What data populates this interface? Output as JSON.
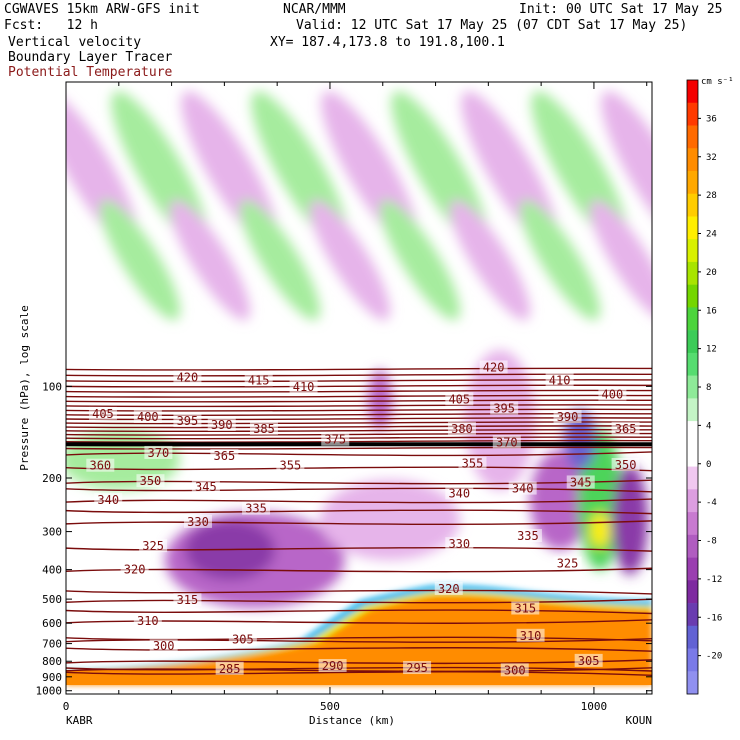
{
  "header": {
    "title_left": "CGWAVES 15km ARW-GFS init",
    "title_center": "NCAR/MMM",
    "init": "Init: 00 UTC Sat 17 May 25",
    "fcst": "Fcst:   12 h",
    "valid": "Valid: 12 UTC Sat 17 May 25 (07 CDT Sat 17 May 25)",
    "field1": "Vertical velocity",
    "field2": "Boundary Layer Tracer",
    "field3": "Potential Temperature",
    "xy": "XY= 187.4,173.8 to 191.8,100.1",
    "field3_color": "#8b1a1a"
  },
  "axes": {
    "ylabel": "Pressure (hPa), log scale",
    "xlabel": "Distance (km)",
    "left_station": "KABR",
    "right_station": "KOUN"
  },
  "colorbar": {
    "unit": "cm s⁻¹",
    "labels": [
      "36",
      "32",
      "28",
      "24",
      "20",
      "16",
      "12",
      "8",
      "4",
      "0",
      "-4",
      "-8",
      "-12",
      "-16",
      "-20"
    ],
    "colors": [
      "#f40000",
      "#ff3a00",
      "#ff6a00",
      "#ff8c00",
      "#ffa800",
      "#ffcc00",
      "#ffee00",
      "#d8f000",
      "#a8e400",
      "#74d600",
      "#4cd43c",
      "#3ccc58",
      "#56dc70",
      "#8eea98",
      "#c4f4c6",
      "#ffffff",
      "#ffffff",
      "#f0c8f0",
      "#dc9ee0",
      "#c87ad0",
      "#b05cc0",
      "#9a3eb0",
      "#7e2aa0",
      "#6a3cb0",
      "#6262d4",
      "#7a7ae8",
      "#9090f0"
    ]
  },
  "chart_data": {
    "type": "heatmap",
    "title": "Vertical velocity, Boundary Layer Tracer, Potential Temperature",
    "xlabel": "Distance (km)",
    "ylabel": "Pressure (hPa), log scale",
    "xlim": [
      0,
      1110
    ],
    "ylim": [
      1025,
      10
    ],
    "y_scale": "log",
    "x_ticks": [
      0,
      500,
      1000
    ],
    "y_ticks": [
      100,
      200,
      300,
      400,
      500,
      600,
      700,
      800,
      900,
      1000
    ],
    "colorbar_ticks": [
      36,
      32,
      28,
      24,
      20,
      16,
      12,
      8,
      4,
      0,
      -4,
      -8,
      -12,
      -16,
      -20
    ],
    "theta_contour_labels": [
      {
        "value": 420,
        "x": 230,
        "p": 95
      },
      {
        "value": 415,
        "x": 365,
        "p": 97
      },
      {
        "value": 410,
        "x": 450,
        "p": 102
      },
      {
        "value": 405,
        "x": 70,
        "p": 125
      },
      {
        "value": 400,
        "x": 155,
        "p": 128
      },
      {
        "value": 395,
        "x": 230,
        "p": 132
      },
      {
        "value": 390,
        "x": 295,
        "p": 136
      },
      {
        "value": 385,
        "x": 375,
        "p": 140
      },
      {
        "value": 375,
        "x": 510,
        "p": 152
      },
      {
        "value": 370,
        "x": 175,
        "p": 168
      },
      {
        "value": 365,
        "x": 300,
        "p": 172
      },
      {
        "value": 360,
        "x": 65,
        "p": 185
      },
      {
        "value": 355,
        "x": 425,
        "p": 185
      },
      {
        "value": 350,
        "x": 160,
        "p": 208
      },
      {
        "value": 345,
        "x": 265,
        "p": 217
      },
      {
        "value": 340,
        "x": 80,
        "p": 240
      },
      {
        "value": 335,
        "x": 360,
        "p": 256
      },
      {
        "value": 330,
        "x": 250,
        "p": 283
      },
      {
        "value": 325,
        "x": 165,
        "p": 340
      },
      {
        "value": 320,
        "x": 130,
        "p": 405
      },
      {
        "value": 315,
        "x": 230,
        "p": 512
      },
      {
        "value": 310,
        "x": 155,
        "p": 598
      },
      {
        "value": 305,
        "x": 335,
        "p": 690
      },
      {
        "value": 300,
        "x": 185,
        "p": 725
      },
      {
        "value": 295,
        "x": 665,
        "p": 855
      },
      {
        "value": 290,
        "x": 505,
        "p": 842
      },
      {
        "value": 285,
        "x": 310,
        "p": 860
      },
      {
        "value": 420,
        "x": 810,
        "p": 88
      },
      {
        "value": 410,
        "x": 935,
        "p": 97
      },
      {
        "value": 405,
        "x": 745,
        "p": 112
      },
      {
        "value": 400,
        "x": 1035,
        "p": 108
      },
      {
        "value": 395,
        "x": 830,
        "p": 120
      },
      {
        "value": 390,
        "x": 950,
        "p": 128
      },
      {
        "value": 380,
        "x": 750,
        "p": 140
      },
      {
        "value": 370,
        "x": 835,
        "p": 155
      },
      {
        "value": 365,
        "x": 1060,
        "p": 140
      },
      {
        "value": 355,
        "x": 770,
        "p": 182
      },
      {
        "value": 350,
        "x": 1060,
        "p": 184
      },
      {
        "value": 345,
        "x": 975,
        "p": 210
      },
      {
        "value": 340,
        "x": 745,
        "p": 228
      },
      {
        "value": 340,
        "x": 865,
        "p": 220
      },
      {
        "value": 335,
        "x": 875,
        "p": 315
      },
      {
        "value": 330,
        "x": 745,
        "p": 335
      },
      {
        "value": 325,
        "x": 950,
        "p": 388
      },
      {
        "value": 320,
        "x": 725,
        "p": 470
      },
      {
        "value": 315,
        "x": 870,
        "p": 545
      },
      {
        "value": 310,
        "x": 880,
        "p": 670
      },
      {
        "value": 305,
        "x": 990,
        "p": 810
      },
      {
        "value": 300,
        "x": 850,
        "p": 870
      }
    ]
  }
}
